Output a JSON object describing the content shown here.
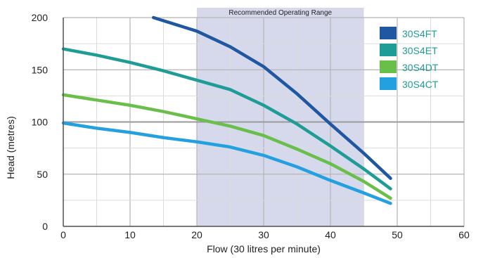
{
  "chart_data": {
    "type": "line",
    "title": "",
    "xlabel": "Flow (30 litres per minute)",
    "ylabel": "Head (metres)",
    "xlim": [
      0,
      60
    ],
    "ylim": [
      0,
      200
    ],
    "xticks": [
      0,
      10,
      20,
      30,
      40,
      50,
      60
    ],
    "yticks": [
      0,
      50,
      100,
      150,
      200
    ],
    "grid": true,
    "legend_position": "top-right",
    "band": {
      "label": "Recommended Operating Range",
      "x_range": [
        20,
        45
      ],
      "color": "#d6d9ec"
    },
    "series": [
      {
        "name": "30S4FT",
        "color": "#1f57a0",
        "x": [
          13.5,
          20,
          25,
          30,
          35,
          40,
          45,
          49
        ],
        "y": [
          200,
          187,
          172,
          153,
          127,
          98,
          70,
          46
        ]
      },
      {
        "name": "30S4ET",
        "color": "#1e9c96",
        "x": [
          0,
          5,
          10,
          15,
          20,
          25,
          30,
          35,
          40,
          45,
          49
        ],
        "y": [
          170,
          164,
          157,
          149,
          140,
          131,
          116,
          98,
          77,
          55,
          36
        ]
      },
      {
        "name": "30S4DT",
        "color": "#6abf4b",
        "x": [
          0,
          5,
          10,
          15,
          20,
          25,
          30,
          35,
          40,
          45,
          49
        ],
        "y": [
          126,
          121,
          116,
          110,
          103,
          96,
          87,
          74,
          60,
          43,
          27
        ]
      },
      {
        "name": "30S4CT",
        "color": "#23a0e0",
        "x": [
          0,
          5,
          10,
          15,
          20,
          25,
          30,
          35,
          40,
          45,
          49
        ],
        "y": [
          99,
          94,
          90,
          85,
          81,
          76,
          68,
          57,
          44,
          32,
          22
        ]
      }
    ]
  }
}
